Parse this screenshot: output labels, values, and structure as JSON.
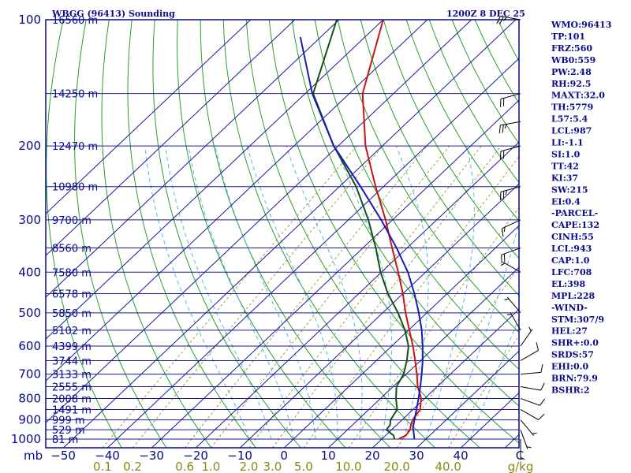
{
  "header": {
    "station": "WBGG (96413) Sounding",
    "time": "1200Z  8 DEC 25"
  },
  "chart_data": {
    "type": "line",
    "title": "WBGG (96413) Sounding",
    "chart_kind": "skew-T log-P",
    "pressure_axis": {
      "unit_label": "mb",
      "levels": [
        100,
        200,
        300,
        400,
        500,
        600,
        700,
        800,
        900,
        1000
      ],
      "range": [
        100,
        1050
      ]
    },
    "height_labels": [
      {
        "p": 100,
        "text": "16560 m"
      },
      {
        "p": 150,
        "text": "14250 m"
      },
      {
        "p": 200,
        "text": "12470 m"
      },
      {
        "p": 250,
        "text": "10980 m"
      },
      {
        "p": 300,
        "text": "9700 m"
      },
      {
        "p": 350,
        "text": "8560 m"
      },
      {
        "p": 400,
        "text": "7580 m"
      },
      {
        "p": 450,
        "text": "6578 m"
      },
      {
        "p": 500,
        "text": "5850 m"
      },
      {
        "p": 550,
        "text": "5102 m"
      },
      {
        "p": 600,
        "text": "4399 m"
      },
      {
        "p": 650,
        "text": "3744 m"
      },
      {
        "p": 700,
        "text": "3133 m"
      },
      {
        "p": 750,
        "text": "2555 m"
      },
      {
        "p": 800,
        "text": "2008 m"
      },
      {
        "p": 850,
        "text": "1491 m"
      },
      {
        "p": 900,
        "text": "999 m"
      },
      {
        "p": 950,
        "text": "529 m"
      },
      {
        "p": 1000,
        "text": "81 m"
      }
    ],
    "temperature_axis": {
      "unit_label": "C",
      "ticks": [
        -50,
        -40,
        -30,
        -20,
        -10,
        0,
        10,
        20,
        30,
        40
      ],
      "tick_labels": [
        "−50",
        "−40",
        "−30",
        "−20",
        "−10",
        "0",
        "10",
        "20",
        "30",
        "40"
      ],
      "isotherms": [
        -110,
        -100,
        -90,
        -80,
        -70,
        -60,
        -50,
        -40,
        -30,
        -20,
        -10,
        0,
        10,
        20,
        30,
        40,
        50
      ]
    },
    "mixing_ratio_axis": {
      "unit_label": "g/kg",
      "values": [
        0.1,
        0.2,
        0.6,
        1.0,
        2.0,
        3.0,
        5.0,
        10.0,
        20.0,
        40.0
      ],
      "labels": [
        "0.1",
        "0.2",
        "0.6",
        "1.0",
        "2.0",
        "3.0",
        "5.0",
        "10.0",
        "20.0",
        "40.0"
      ]
    },
    "series": [
      {
        "name": "Temperature",
        "color": "#c81414",
        "points": [
          [
            1000,
            23.8
          ],
          [
            980,
            24.6
          ],
          [
            950,
            24.2
          ],
          [
            925,
            23.2
          ],
          [
            900,
            22.4
          ],
          [
            850,
            21.6
          ],
          [
            800,
            19.2
          ],
          [
            750,
            15.6
          ],
          [
            700,
            12.4
          ],
          [
            650,
            8.8
          ],
          [
            600,
            4.8
          ],
          [
            550,
            0.2
          ],
          [
            500,
            -4.8
          ],
          [
            450,
            -10.0
          ],
          [
            400,
            -16.2
          ],
          [
            350,
            -23.4
          ],
          [
            300,
            -31.6
          ],
          [
            250,
            -41.8
          ],
          [
            200,
            -53.8
          ],
          [
            150,
            -67.0
          ],
          [
            100,
            -80.0
          ]
        ]
      },
      {
        "name": "Dew point",
        "color": "#145014",
        "points": [
          [
            1000,
            22.9
          ],
          [
            980,
            21.8
          ],
          [
            950,
            18.8
          ],
          [
            925,
            18.5
          ],
          [
            900,
            17.4
          ],
          [
            850,
            16.4
          ],
          [
            800,
            13.5
          ],
          [
            750,
            10.8
          ],
          [
            700,
            9.4
          ],
          [
            650,
            6.9
          ],
          [
            600,
            3.8
          ],
          [
            550,
            -0.8
          ],
          [
            500,
            -6.5
          ],
          [
            450,
            -13.4
          ],
          [
            400,
            -20.2
          ],
          [
            350,
            -27.1
          ],
          [
            300,
            -35.5
          ],
          [
            250,
            -46.2
          ],
          [
            200,
            -61.0
          ],
          [
            150,
            -78.2
          ],
          [
            100,
            -90.5
          ]
        ]
      },
      {
        "name": "Parcel",
        "color": "#1a1ab4",
        "points": [
          [
            1000,
            27.4
          ],
          [
            950,
            24.9
          ],
          [
            943,
            24.5
          ],
          [
            900,
            22.8
          ],
          [
            850,
            20.8
          ],
          [
            800,
            18.6
          ],
          [
            750,
            16.2
          ],
          [
            700,
            13.5
          ],
          [
            650,
            10.5
          ],
          [
            600,
            7.0
          ],
          [
            550,
            3.0
          ],
          [
            500,
            -1.8
          ],
          [
            450,
            -7.4
          ],
          [
            400,
            -14.0
          ],
          [
            350,
            -22.4
          ],
          [
            300,
            -32.6
          ],
          [
            250,
            -45.2
          ],
          [
            200,
            -61.0
          ],
          [
            150,
            -78.4
          ],
          [
            110,
            -94.6
          ]
        ]
      }
    ],
    "wind_barbs": [
      {
        "p": 100,
        "dir": 280,
        "spd": 25
      },
      {
        "p": 150,
        "dir": 255,
        "spd": 20
      },
      {
        "p": 175,
        "dir": 260,
        "spd": 25
      },
      {
        "p": 200,
        "dir": 255,
        "spd": 20
      },
      {
        "p": 250,
        "dir": 255,
        "spd": 25
      },
      {
        "p": 300,
        "dir": 245,
        "spd": 15
      },
      {
        "p": 350,
        "dir": 250,
        "spd": 20
      },
      {
        "p": 400,
        "dir": 300,
        "spd": 5
      },
      {
        "p": 500,
        "dir": 320,
        "spd": 5
      },
      {
        "p": 550,
        "dir": 330,
        "spd": 5
      },
      {
        "p": 600,
        "dir": 35,
        "spd": 5
      },
      {
        "p": 650,
        "dir": 60,
        "spd": 10
      },
      {
        "p": 700,
        "dir": 85,
        "spd": 10
      },
      {
        "p": 750,
        "dir": 100,
        "spd": 10
      },
      {
        "p": 800,
        "dir": 110,
        "spd": 10
      },
      {
        "p": 850,
        "dir": 120,
        "spd": 10
      },
      {
        "p": 900,
        "dir": 140,
        "spd": 5
      },
      {
        "p": 950,
        "dir": 160,
        "spd": 5
      },
      {
        "p": 1000,
        "dir": 180,
        "spd": 5
      }
    ]
  },
  "indices": [
    "WMO:96413",
    "TP:101",
    "FRZ:560",
    "WB0:559",
    "PW:2.48",
    "RH:92.5",
    "MAXT:32.0",
    "TH:5779",
    "L57:5.4",
    "LCL:987",
    "LI:-1.1",
    "SI:1.0",
    "TT:42",
    "KI:37",
    "SW:215",
    "EI:0.4",
    "-PARCEL-",
    "CAPE:132",
    "CINH:55",
    "LCL:943",
    "CAP:1.0",
    "LFC:708",
    "EL:398",
    "MPL:228",
    "-WIND-",
    "STM:307/9",
    "HEL:27",
    "SHR+:0.0",
    "SRDS:57",
    "EHI:0.0",
    "BRN:79.9",
    "BSHR:2"
  ],
  "colors": {
    "frame": "#0a0a8a",
    "isobar": "#1a1a96",
    "isotherm": "#1a1a96",
    "dry_adiabat": "#28a028",
    "moist_adiabat": "#5ab4e6",
    "mixing_ratio": "#8a8a10",
    "barb": "#000000"
  }
}
